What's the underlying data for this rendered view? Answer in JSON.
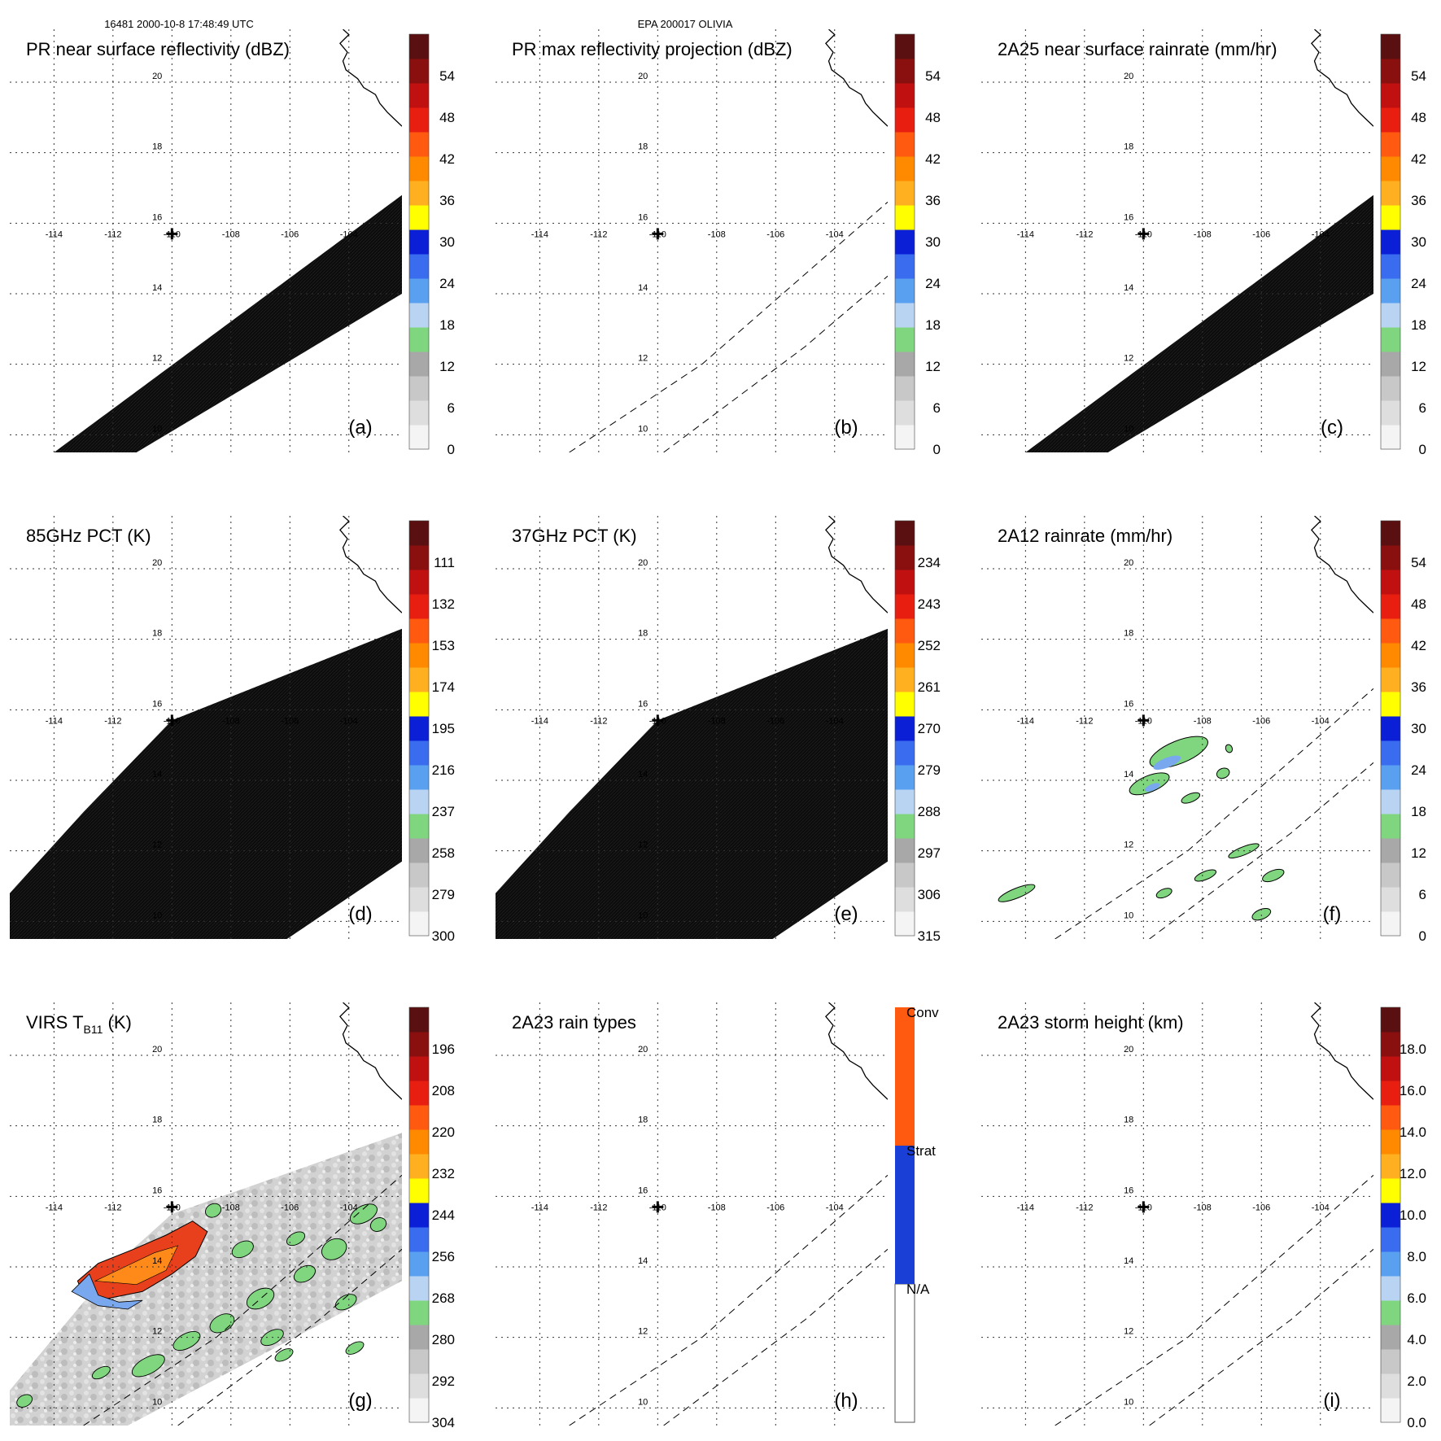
{
  "header": {
    "left": "16481 2000-10-8 17:48:49 UTC",
    "center": "EPA 200017 OLIVIA"
  },
  "map": {
    "lon_labels": [
      "-114",
      "-112",
      "-110",
      "-108",
      "-106",
      "-104"
    ],
    "lat_labels": [
      "20",
      "18",
      "16",
      "14",
      "12",
      "10"
    ],
    "lon_range": [
      -115.5,
      -102.2
    ],
    "lat_range": [
      9.5,
      21.5
    ],
    "center_marker": {
      "lon": -110.0,
      "lat": 15.7
    }
  },
  "colors": {
    "black_fill": "#0c0c0c",
    "rain_green": "#7fd67f",
    "rain_blue": "#7aa8ee",
    "warm_orange": "#ff8a1a",
    "cold_red": "#e8401c",
    "virs_gray": "#d6d6d6",
    "rain_type_conv": "#ff5a10",
    "rain_type_strat": "#1a3fd6"
  },
  "colorbar_palette": [
    "#f4f4f4",
    "#dedede",
    "#c8c8c8",
    "#a8a8a8",
    "#7fd67f",
    "#b8d4f2",
    "#5aa0f0",
    "#3a6cf0",
    "#0a1fd6",
    "#ffff00",
    "#ffb020",
    "#ff8a00",
    "#ff5a10",
    "#e81e10",
    "#c01010",
    "#8a1010",
    "#5a1010"
  ],
  "panels": [
    {
      "id": "a",
      "title": "PR near surface reflectivity (dBZ)",
      "label": "(a)",
      "fill": "swath_black",
      "colorbar": {
        "type": "continuous",
        "ticks": [
          "0",
          "6",
          "12",
          "18",
          "24",
          "30",
          "36",
          "42",
          "48",
          "54"
        ]
      }
    },
    {
      "id": "b",
      "title": "PR max reflectivity projection (dBZ)",
      "label": "(b)",
      "fill": "outline",
      "colorbar": {
        "type": "continuous",
        "ticks": [
          "0",
          "6",
          "12",
          "18",
          "24",
          "30",
          "36",
          "42",
          "48",
          "54"
        ]
      }
    },
    {
      "id": "c",
      "title": "2A25 near surface rainrate (mm/hr)",
      "label": "(c)",
      "fill": "swath_black",
      "colorbar": {
        "type": "continuous",
        "ticks": [
          "0",
          "6",
          "12",
          "18",
          "24",
          "30",
          "36",
          "42",
          "48",
          "54"
        ]
      }
    },
    {
      "id": "d",
      "title": "85GHz PCT (K)",
      "label": "(d)",
      "fill": "tmi_black",
      "colorbar": {
        "type": "continuous",
        "ticks": [
          "300",
          "279",
          "258",
          "237",
          "216",
          "195",
          "174",
          "153",
          "132",
          "111"
        ]
      }
    },
    {
      "id": "e",
      "title": "37GHz PCT (K)",
      "label": "(e)",
      "fill": "tmi_black",
      "colorbar": {
        "type": "continuous",
        "ticks": [
          "315",
          "306",
          "297",
          "288",
          "279",
          "270",
          "261",
          "252",
          "243",
          "234"
        ]
      }
    },
    {
      "id": "f",
      "title": "2A12 rainrate (mm/hr)",
      "label": "(f)",
      "fill": "rain_patches",
      "colorbar": {
        "type": "continuous",
        "ticks": [
          "0",
          "6",
          "12",
          "18",
          "24",
          "30",
          "36",
          "42",
          "48",
          "54"
        ]
      }
    },
    {
      "id": "g",
      "title_main": "VIRS T",
      "title_sub": "B11",
      "title_unit": " (K)",
      "label": "(g)",
      "fill": "virs",
      "colorbar": {
        "type": "continuous",
        "ticks": [
          "304",
          "292",
          "280",
          "268",
          "256",
          "244",
          "232",
          "220",
          "208",
          "196"
        ]
      }
    },
    {
      "id": "h",
      "title": "2A23 rain types",
      "label": "(h)",
      "fill": "outline",
      "colorbar": {
        "type": "categorical",
        "ticks": [
          "N/A",
          "Strat",
          "Conv"
        ]
      }
    },
    {
      "id": "i",
      "title": "2A23 storm height (km)",
      "label": "(i)",
      "fill": "outline",
      "colorbar": {
        "type": "continuous",
        "ticks": [
          "0.0",
          "2.0",
          "4.0",
          "6.0",
          "8.0",
          "10.0",
          "12.0",
          "14.0",
          "16.0",
          "18.0"
        ]
      }
    }
  ]
}
